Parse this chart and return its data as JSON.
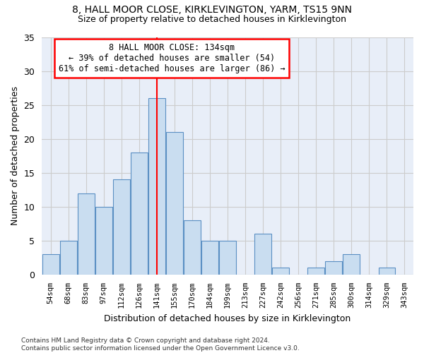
{
  "title": "8, HALL MOOR CLOSE, KIRKLEVINGTON, YARM, TS15 9NN",
  "subtitle": "Size of property relative to detached houses in Kirklevington",
  "xlabel": "Distribution of detached houses by size in Kirklevington",
  "ylabel": "Number of detached properties",
  "bar_labels": [
    "54sqm",
    "68sqm",
    "83sqm",
    "97sqm",
    "112sqm",
    "126sqm",
    "141sqm",
    "155sqm",
    "170sqm",
    "184sqm",
    "199sqm",
    "213sqm",
    "227sqm",
    "242sqm",
    "256sqm",
    "271sqm",
    "285sqm",
    "300sqm",
    "314sqm",
    "329sqm",
    "343sqm"
  ],
  "bar_values": [
    3,
    5,
    12,
    10,
    14,
    18,
    26,
    21,
    8,
    5,
    5,
    0,
    6,
    1,
    0,
    1,
    2,
    3,
    0,
    1,
    0
  ],
  "bar_color": "#c9ddf0",
  "bar_edgecolor": "#5a8fc3",
  "vline_x": 6,
  "vline_color": "red",
  "annotation_line1": "8 HALL MOOR CLOSE: 134sqm",
  "annotation_line2": "← 39% of detached houses are smaller (54)",
  "annotation_line3": "61% of semi-detached houses are larger (86) →",
  "annotation_box_color": "white",
  "annotation_box_edgecolor": "red",
  "ylim": [
    0,
    35
  ],
  "yticks": [
    0,
    5,
    10,
    15,
    20,
    25,
    30,
    35
  ],
  "grid_color": "#cccccc",
  "plot_bg_color": "#e8eef8",
  "fig_bg_color": "#ffffff",
  "footer": "Contains HM Land Registry data © Crown copyright and database right 2024.\nContains public sector information licensed under the Open Government Licence v3.0."
}
